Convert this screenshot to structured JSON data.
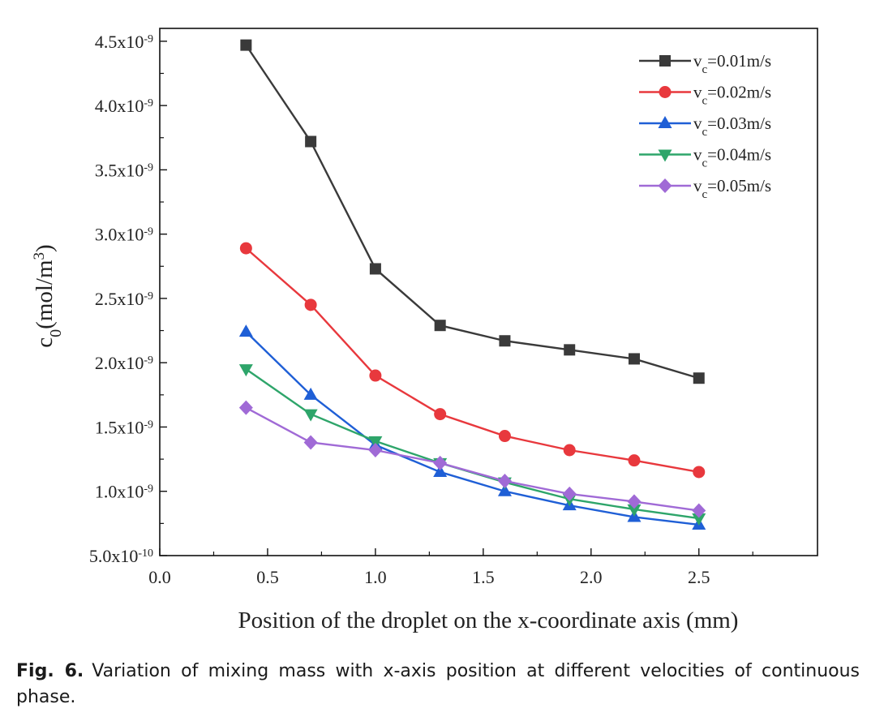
{
  "chart_data": {
    "type": "line",
    "xlabel": "Position of the droplet on the x-coordinate axis (mm)",
    "ylabel": {
      "base": "c",
      "sub": "0",
      "open": "(mol/m",
      "sup": "3",
      "close": ")"
    },
    "xlim": [
      0.0,
      3.05
    ],
    "ylim": [
      5e-10,
      4.6e-09
    ],
    "x_ticks": [
      0.0,
      0.5,
      1.0,
      1.5,
      2.0,
      2.5
    ],
    "x_tick_labels": [
      "0.0",
      "0.5",
      "1.0",
      "1.5",
      "2.0",
      "2.5"
    ],
    "y_ticks": [
      {
        "value": 5e-10,
        "mant": "5.0x10",
        "exp": "-10"
      },
      {
        "value": 1e-09,
        "mant": "1.0x10",
        "exp": "-9"
      },
      {
        "value": 1.5e-09,
        "mant": "1.5x10",
        "exp": "-9"
      },
      {
        "value": 2e-09,
        "mant": "2.0x10",
        "exp": "-9"
      },
      {
        "value": 2.5e-09,
        "mant": "2.5x10",
        "exp": "-9"
      },
      {
        "value": 3e-09,
        "mant": "3.0x10",
        "exp": "-9"
      },
      {
        "value": 3.5e-09,
        "mant": "3.5x10",
        "exp": "-9"
      },
      {
        "value": 4e-09,
        "mant": "4.0x10",
        "exp": "-9"
      },
      {
        "value": 4.5e-09,
        "mant": "4.5x10",
        "exp": "-9"
      }
    ],
    "x": [
      0.4,
      0.7,
      1.0,
      1.3,
      1.6,
      1.9,
      2.2,
      2.5
    ],
    "legend_position": "top-right",
    "grid": false,
    "series": [
      {
        "name": "v",
        "name_sub": "c",
        "name_rest": "=0.01m/s",
        "color": "#3a3a3a",
        "marker": "square",
        "values": [
          4.47e-09,
          3.72e-09,
          2.73e-09,
          2.29e-09,
          2.17e-09,
          2.1e-09,
          2.03e-09,
          1.88e-09
        ]
      },
      {
        "name": "v",
        "name_sub": "c",
        "name_rest": "=0.02m/s",
        "color": "#e8383d",
        "marker": "circle",
        "values": [
          2.89e-09,
          2.45e-09,
          1.9e-09,
          1.6e-09,
          1.43e-09,
          1.32e-09,
          1.24e-09,
          1.15e-09
        ]
      },
      {
        "name": "v",
        "name_sub": "c",
        "name_rest": "=0.03m/s",
        "color": "#1f5fd6",
        "marker": "triangle-up",
        "values": [
          2.24e-09,
          1.75e-09,
          1.36e-09,
          1.15e-09,
          1e-09,
          8.9e-10,
          8e-10,
          7.4e-10
        ]
      },
      {
        "name": "v",
        "name_sub": "c",
        "name_rest": "=0.04m/s",
        "color": "#2ea56a",
        "marker": "triangle-down",
        "values": [
          1.95e-09,
          1.6e-09,
          1.39e-09,
          1.22e-09,
          1.07e-09,
          9.4e-10,
          8.6e-10,
          7.9e-10
        ]
      },
      {
        "name": "v",
        "name_sub": "c",
        "name_rest": "=0.05m/s",
        "color": "#a06ad6",
        "marker": "diamond",
        "values": [
          1.65e-09,
          1.38e-09,
          1.32e-09,
          1.22e-09,
          1.08e-09,
          9.8e-10,
          9.2e-10,
          8.5e-10
        ]
      }
    ]
  },
  "caption": {
    "label": "Fig. 6.",
    "text": "Variation of mixing mass with x-axis position at different velocities of continuous phase."
  }
}
